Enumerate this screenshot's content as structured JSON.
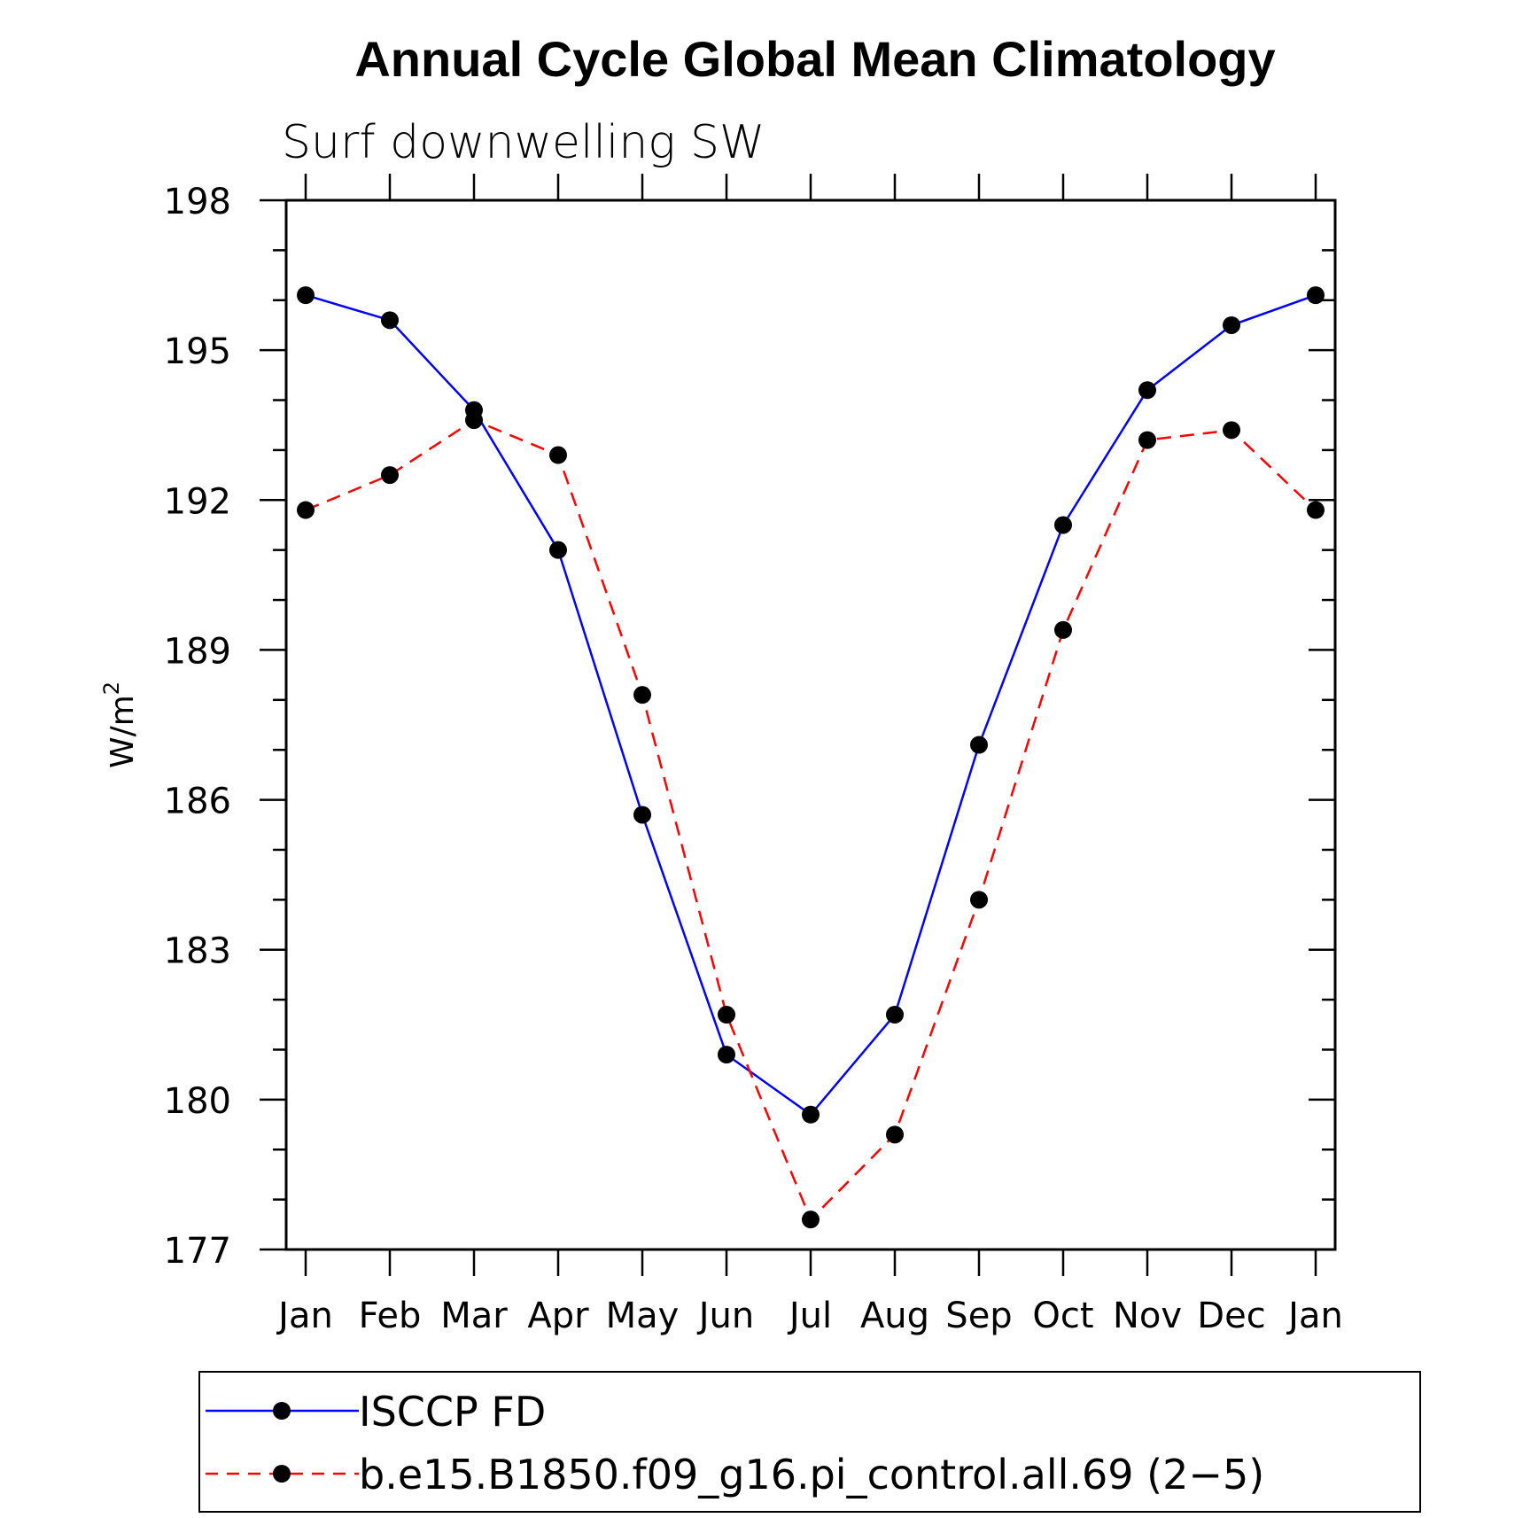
{
  "chart_data": {
    "type": "line",
    "title": "Annual Cycle Global Mean Climatology",
    "subtitle": "Surf downwelling SW",
    "xlabel": "",
    "ylabel": "W/m",
    "ylabel_superscript": "2",
    "ylim": [
      177,
      198
    ],
    "yticks": [
      177,
      180,
      183,
      186,
      189,
      192,
      195,
      198
    ],
    "categories": [
      "Jan",
      "Feb",
      "Mar",
      "Apr",
      "May",
      "Jun",
      "Jul",
      "Aug",
      "Sep",
      "Oct",
      "Nov",
      "Dec",
      "Jan"
    ],
    "grid": false,
    "legend_position": "bottom",
    "series": [
      {
        "name": "ISCCP FD",
        "color": "#0000ff",
        "dash": "solid",
        "marker": "filled-circle",
        "values": [
          196.1,
          195.6,
          193.8,
          191.0,
          185.7,
          180.9,
          179.7,
          181.7,
          187.1,
          191.5,
          194.2,
          195.5,
          196.1
        ]
      },
      {
        "name": "b.e15.B1850.f09_g16.pi_control.all.69 (2−5)",
        "color": "#ff0000",
        "dash": "dashed",
        "marker": "filled-circle",
        "values": [
          191.8,
          192.5,
          193.6,
          192.9,
          188.1,
          181.7,
          177.6,
          179.3,
          184.0,
          189.4,
          193.2,
          193.4,
          191.8
        ]
      }
    ]
  }
}
